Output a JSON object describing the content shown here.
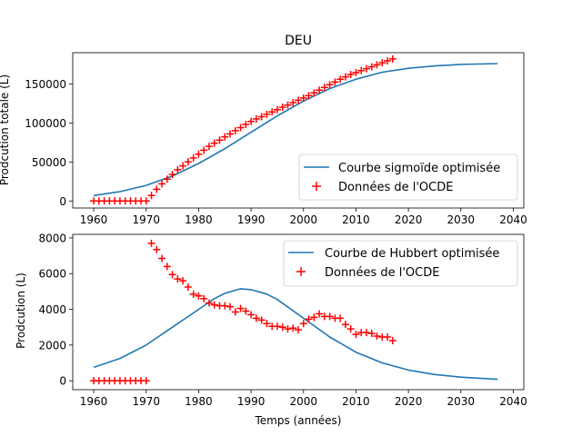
{
  "figure": {
    "title": "DEU"
  },
  "chart_data": [
    {
      "type": "line",
      "title": "DEU",
      "xlabel": "",
      "ylabel": "Prodcution totale (L)",
      "xlim": [
        1956,
        2042
      ],
      "ylim": [
        -9000,
        190000
      ],
      "xticks": [
        1960,
        1970,
        1980,
        1990,
        2000,
        2010,
        2020,
        2030,
        2040
      ],
      "xtick_labels": [
        "1960",
        "1970",
        "1980",
        "1990",
        "2000",
        "2010",
        "2020",
        "2030",
        "2040"
      ],
      "yticks": [
        0,
        50000,
        100000,
        150000
      ],
      "ytick_labels": [
        "0",
        "50000",
        "100000",
        "150000"
      ],
      "legend": {
        "position": "lower-right",
        "entries": [
          "Courbe sigmoïde optimisée",
          "Données de l'OCDE"
        ]
      },
      "series": [
        {
          "name": "Courbe sigmoïde optimisée",
          "kind": "line",
          "color": "#1f77b4",
          "x": [
            1960,
            1965,
            1970,
            1975,
            1980,
            1985,
            1990,
            1995,
            2000,
            2005,
            2010,
            2015,
            2020,
            2025,
            2030,
            2037
          ],
          "y": [
            7000,
            12000,
            20000,
            32000,
            48000,
            67000,
            88000,
            109000,
            128000,
            144000,
            156000,
            165000,
            170000,
            173000,
            175000,
            176000
          ]
        },
        {
          "name": "Données de l'OCDE",
          "kind": "scatter",
          "marker": "+",
          "color": "#ff0000",
          "x": [
            1960,
            1961,
            1962,
            1963,
            1964,
            1965,
            1966,
            1967,
            1968,
            1969,
            1970,
            1971,
            1972,
            1973,
            1974,
            1975,
            1976,
            1977,
            1978,
            1979,
            1980,
            1981,
            1982,
            1983,
            1984,
            1985,
            1986,
            1987,
            1988,
            1989,
            1990,
            1991,
            1992,
            1993,
            1994,
            1995,
            1996,
            1997,
            1998,
            1999,
            2000,
            2001,
            2002,
            2003,
            2004,
            2005,
            2006,
            2007,
            2008,
            2009,
            2010,
            2011,
            2012,
            2013,
            2014,
            2015,
            2016,
            2017
          ],
          "y": [
            0,
            0,
            0,
            0,
            0,
            0,
            0,
            0,
            0,
            0,
            0,
            7000,
            15000,
            22000,
            28000,
            34000,
            40000,
            45000,
            50000,
            55000,
            60000,
            65000,
            70000,
            74000,
            78000,
            82000,
            86000,
            90000,
            94000,
            98000,
            102000,
            105000,
            108000,
            111000,
            114000,
            117000,
            120000,
            123000,
            126000,
            129000,
            132000,
            135000,
            138500,
            142000,
            145500,
            149000,
            152500,
            156000,
            159000,
            162000,
            164500,
            167000,
            169500,
            172000,
            174500,
            177000,
            179500,
            182000
          ]
        }
      ]
    },
    {
      "type": "line",
      "title": "",
      "xlabel": "Temps (années)",
      "ylabel": "Prodcution (L)",
      "xlim": [
        1956,
        2042
      ],
      "ylim": [
        -500,
        8200
      ],
      "xticks": [
        1960,
        1970,
        1980,
        1990,
        2000,
        2010,
        2020,
        2030,
        2040
      ],
      "xtick_labels": [
        "1960",
        "1970",
        "1980",
        "1990",
        "2000",
        "2010",
        "2020",
        "2030",
        "2040"
      ],
      "yticks": [
        0,
        2000,
        4000,
        6000,
        8000
      ],
      "ytick_labels": [
        "0",
        "2000",
        "4000",
        "6000",
        "8000"
      ],
      "legend": {
        "position": "upper-right",
        "entries": [
          "Courbe de Hubbert optimisée",
          "Données de l'OCDE"
        ]
      },
      "series": [
        {
          "name": "Courbe de Hubbert optimisée",
          "kind": "line",
          "color": "#1f77b4",
          "x": [
            1960,
            1965,
            1970,
            1975,
            1980,
            1983,
            1985,
            1988,
            1990,
            1993,
            1995,
            2000,
            2005,
            2010,
            2015,
            2020,
            2025,
            2030,
            2037
          ],
          "y": [
            750,
            1250,
            2000,
            3000,
            4000,
            4600,
            4900,
            5150,
            5100,
            4850,
            4550,
            3500,
            2450,
            1600,
            1000,
            600,
            350,
            200,
            80
          ]
        },
        {
          "name": "Données de l'OCDE",
          "kind": "scatter",
          "marker": "+",
          "color": "#ff0000",
          "x": [
            1960,
            1961,
            1962,
            1963,
            1964,
            1965,
            1966,
            1967,
            1968,
            1969,
            1970,
            1971,
            1972,
            1973,
            1974,
            1975,
            1976,
            1977,
            1978,
            1979,
            1980,
            1981,
            1982,
            1983,
            1984,
            1985,
            1986,
            1987,
            1988,
            1989,
            1990,
            1991,
            1992,
            1993,
            1994,
            1995,
            1996,
            1997,
            1998,
            1999,
            2000,
            2001,
            2002,
            2003,
            2004,
            2005,
            2006,
            2007,
            2008,
            2009,
            2010,
            2011,
            2012,
            2013,
            2014,
            2015,
            2016,
            2017
          ],
          "y": [
            0,
            0,
            0,
            0,
            0,
            0,
            0,
            0,
            0,
            0,
            0,
            7700,
            7350,
            6850,
            6400,
            5950,
            5700,
            5600,
            5250,
            4850,
            4750,
            4600,
            4350,
            4250,
            4200,
            4200,
            4150,
            3850,
            4050,
            3900,
            3700,
            3500,
            3400,
            3200,
            3050,
            3050,
            3000,
            2900,
            2950,
            2850,
            3200,
            3450,
            3550,
            3750,
            3600,
            3600,
            3500,
            3500,
            3150,
            2900,
            2600,
            2700,
            2700,
            2650,
            2500,
            2450,
            2450,
            2250
          ]
        }
      ]
    }
  ]
}
